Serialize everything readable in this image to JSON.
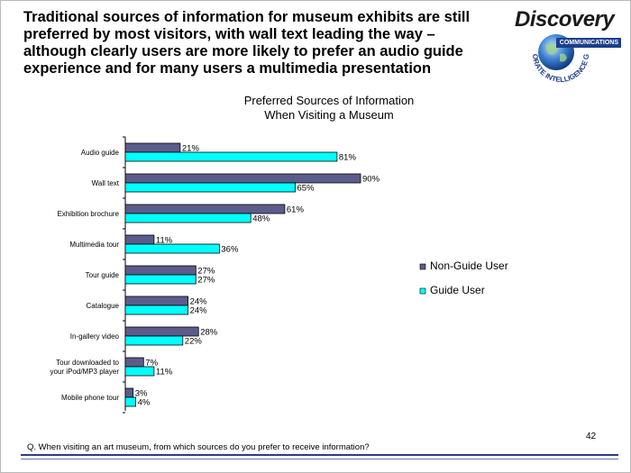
{
  "headline": "Traditional sources of information for museum exhibits are still preferred by most visitors, with wall text leading the way – although clearly users are more likely to prefer an audio guide experience and for many users a multimedia presentation",
  "logo": {
    "wordmark": "Discovery",
    "band_text": "COMMUNICATIONS",
    "arc_text": "CORPORATE INTELLIGENCE GROUP"
  },
  "footer": {
    "question": "Q. When visiting an art museum, from which sources do you prefer to receive information?",
    "page_number": "42"
  },
  "colors": {
    "non_guide": "#5c5c8c",
    "guide": "#00ffff",
    "rule": "#2b3d87"
  },
  "chart_data": {
    "type": "bar",
    "orientation": "horizontal",
    "title": [
      "Preferred Sources of Information",
      "When Visiting a Museum"
    ],
    "categories": [
      [
        "Audio guide"
      ],
      [
        "Wall text"
      ],
      [
        "Exhibition brochure"
      ],
      [
        "Multimedia tour"
      ],
      [
        "Tour guide"
      ],
      [
        "Catalogue"
      ],
      [
        "In-gallery video"
      ],
      [
        "Tour downloaded to",
        "your iPod/MP3 player"
      ],
      [
        "Mobile phone tour"
      ]
    ],
    "series": [
      {
        "name": "Non-Guide User",
        "values": [
          21,
          90,
          61,
          11,
          27,
          24,
          28,
          7,
          3
        ]
      },
      {
        "name": "Guide User",
        "values": [
          81,
          65,
          48,
          36,
          27,
          24,
          22,
          11,
          4
        ]
      }
    ],
    "value_suffix": "%",
    "xlim": [
      0,
      100
    ],
    "grid": false,
    "legend_position": "right"
  }
}
